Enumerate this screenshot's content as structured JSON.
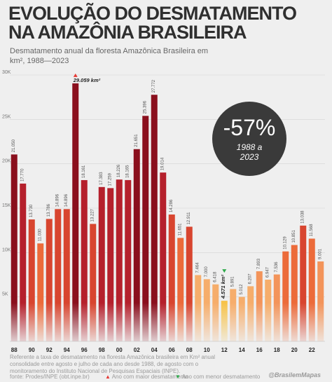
{
  "header": {
    "title": "EVOLUÇÃO DO DESMATAMENTO NA AMAZÔNIA BRASILEIRA",
    "subtitle": "Desmatamento anual da floresta Amazônica Brasileira em km², 1988—2023"
  },
  "badge": {
    "change": "-57%",
    "period": "1988 a\n2023"
  },
  "footer": {
    "note": "Referente a taxa de desmatamento na floresta Amazônica brasileira em Km² anual consolidade entre agosto e julho de cada ano desde 1988, de agosto com o monitoramento do Instituto Nacional de Pesquisas Espaciais (INPE).",
    "source": "fonte: Prodes/INPE (obt.inpe.br)",
    "legend_max": "Ano com maior desmatamento",
    "legend_min": "Ano com menor desmatamento",
    "handle": "@BrasilemMapas"
  },
  "chart_data": {
    "type": "bar",
    "x": [
      1988,
      1989,
      1990,
      1991,
      1992,
      1993,
      1994,
      1995,
      1996,
      1997,
      1998,
      1999,
      2000,
      2001,
      2002,
      2003,
      2004,
      2005,
      2006,
      2007,
      2008,
      2009,
      2010,
      2011,
      2012,
      2013,
      2014,
      2015,
      2016,
      2017,
      2018,
      2019,
      2020,
      2021,
      2022,
      2023
    ],
    "values": [
      21050,
      17770,
      13730,
      11030,
      13786,
      14896,
      14896,
      29059,
      18161,
      13227,
      17383,
      17259,
      18226,
      18165,
      21651,
      25396,
      27772,
      19014,
      14286,
      11651,
      12911,
      7464,
      7000,
      6418,
      4571,
      5891,
      5012,
      6207,
      7893,
      6947,
      7536,
      10129,
      10851,
      13038,
      11568,
      9001
    ],
    "value_labels": [
      "21.050",
      "17.770",
      "13.730",
      "11.030",
      "13.786",
      "14.896",
      "14.896",
      "29.059 km²",
      "18.161",
      "13.227",
      "17.383",
      "17.259",
      "18.226",
      "18.165",
      "21.651",
      "25.396",
      "27.772",
      "19.014",
      "14.286",
      "11.651",
      "12.911",
      "7.464",
      "7.000",
      "6.418",
      "4.571 km²",
      "5.891",
      "5.012",
      "6.207",
      "7.893",
      "6.947",
      "7.536",
      "10.129",
      "10.851",
      "13.038",
      "11.568",
      "9.001"
    ],
    "x_tick_labels": [
      "88",
      "",
      "90",
      "",
      "92",
      "",
      "94",
      "",
      "96",
      "",
      "98",
      "",
      "00",
      "",
      "02",
      "",
      "04",
      "",
      "06",
      "",
      "08",
      "",
      "10",
      "",
      "12",
      "",
      "14",
      "",
      "16",
      "",
      "18",
      "",
      "20",
      "",
      "22",
      ""
    ],
    "y_ticks": [
      5000,
      10000,
      15000,
      20000,
      25000,
      30000
    ],
    "y_tick_labels": [
      "5K",
      "10K",
      "15K",
      "20K",
      "25K",
      "30K"
    ],
    "ylim": [
      0,
      30000
    ],
    "max_year": 1995,
    "min_year": 2012,
    "colors": {
      "darkest": "#8a0f1d",
      "dark": "#b5202c",
      "mid": "#d8452f",
      "orange": "#ec6b3a",
      "light": "#f3945a",
      "lightest": "#f6ad6b",
      "min": "#f7c34a",
      "max_marker": "#e53935",
      "min_marker": "#2eaa4a"
    },
    "grid": true,
    "legend_position": "bottom"
  }
}
